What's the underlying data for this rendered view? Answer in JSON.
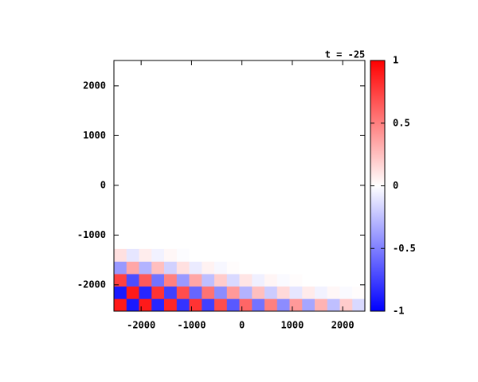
{
  "chart_data": {
    "type": "heatmap",
    "title": "t = -25",
    "x": [
      -2415,
      -2166,
      -1917,
      -1668,
      -1419,
      -1170,
      -921,
      -672,
      -423,
      -174,
      75,
      324,
      573,
      822,
      1071,
      1320,
      1569,
      1818,
      2067,
      2316
    ],
    "y": [
      -2405,
      -2155,
      -1905,
      -1655,
      -1405
    ],
    "z": [
      [
        0.9,
        -0.9,
        0.9,
        -0.85,
        0.85,
        -0.8,
        0.8,
        -0.75,
        0.7,
        -0.65,
        0.6,
        -0.55,
        0.5,
        -0.45,
        0.4,
        -0.35,
        0.3,
        -0.25,
        0.2,
        -0.15
      ],
      [
        -0.9,
        0.9,
        -0.85,
        0.8,
        -0.75,
        0.7,
        -0.6,
        0.55,
        -0.45,
        0.4,
        -0.3,
        0.25,
        -0.2,
        0.15,
        -0.1,
        0.08,
        -0.05,
        0.03,
        -0.02,
        0.01
      ],
      [
        0.75,
        -0.7,
        0.65,
        -0.55,
        0.5,
        -0.4,
        0.35,
        -0.25,
        0.2,
        -0.15,
        0.1,
        -0.06,
        0.04,
        -0.02,
        0.01,
        0,
        0,
        0,
        0,
        0
      ],
      [
        -0.4,
        0.35,
        -0.3,
        0.25,
        -0.18,
        0.12,
        -0.08,
        0.05,
        -0.03,
        0.01,
        0,
        0,
        0,
        0,
        0,
        0,
        0,
        0,
        0,
        0
      ],
      [
        0.12,
        -0.1,
        0.07,
        -0.05,
        0.03,
        -0.01,
        0,
        0,
        0,
        0,
        0,
        0,
        0,
        0,
        0,
        0,
        0,
        0,
        0,
        0
      ]
    ],
    "xlim": [
      -2540,
      2440
    ],
    "xticks": [
      -2000,
      -1000,
      0,
      1000,
      2000
    ],
    "ylim": [
      -2530,
      2510
    ],
    "yticks": [
      -2000,
      -1000,
      0,
      1000,
      2000
    ],
    "zlim": [
      -1,
      1
    ],
    "zticks": [
      -1,
      -0.5,
      0,
      0.5,
      1
    ],
    "colors": [
      "#0000ff",
      "#ffffff",
      "#ff0000"
    ]
  }
}
